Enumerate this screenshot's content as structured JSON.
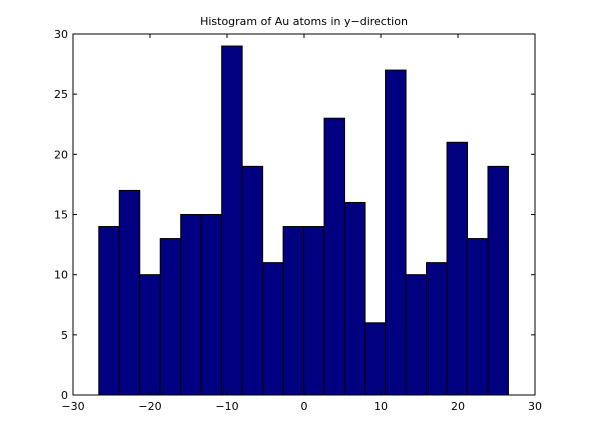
{
  "chart_data": {
    "type": "bar",
    "title": "Histogram of Au atoms in y−direction",
    "xlabel": "",
    "ylabel": "",
    "xlim": [
      -30,
      30
    ],
    "ylim": [
      0,
      30
    ],
    "xticks": [
      -30,
      -20,
      -10,
      0,
      10,
      20,
      30
    ],
    "xtick_labels": [
      "−30",
      "−20",
      "−10",
      "0",
      "10",
      "20",
      "30"
    ],
    "yticks": [
      0,
      5,
      10,
      15,
      20,
      25,
      30
    ],
    "ytick_labels": [
      "0",
      "5",
      "10",
      "15",
      "20",
      "25",
      "30"
    ],
    "bin_edges": [
      -26.65,
      -23.99,
      -21.33,
      -18.67,
      -16.01,
      -13.35,
      -10.69,
      -8.03,
      -5.37,
      -2.71,
      -0.05,
      2.61,
      5.27,
      7.93,
      10.59,
      13.25,
      15.91,
      18.57,
      21.23,
      23.89,
      26.55
    ],
    "values": [
      14,
      17,
      10,
      13,
      15,
      15,
      29,
      19,
      11,
      14,
      14,
      23,
      16,
      6,
      27,
      10,
      11,
      21,
      13,
      19
    ],
    "bar_color": "#000080",
    "edge_color": "#000000",
    "grid": false
  }
}
